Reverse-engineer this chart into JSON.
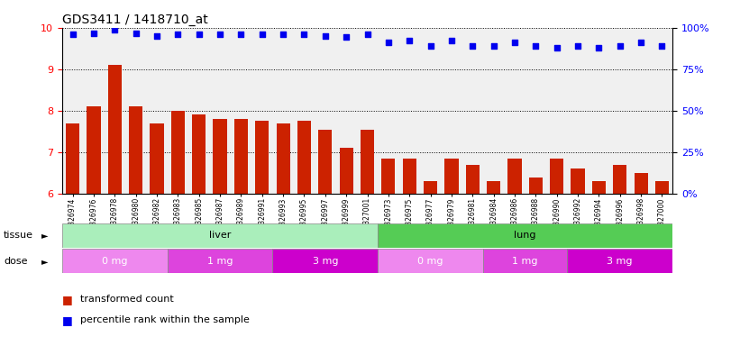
{
  "title": "GDS3411 / 1418710_at",
  "samples": [
    "GSM326974",
    "GSM326976",
    "GSM326978",
    "GSM326980",
    "GSM326982",
    "GSM326983",
    "GSM326985",
    "GSM326987",
    "GSM326989",
    "GSM326991",
    "GSM326993",
    "GSM326995",
    "GSM326997",
    "GSM326999",
    "GSM327001",
    "GSM326973",
    "GSM326975",
    "GSM326977",
    "GSM326979",
    "GSM326981",
    "GSM326984",
    "GSM326986",
    "GSM326988",
    "GSM326990",
    "GSM326992",
    "GSM326994",
    "GSM326996",
    "GSM326998",
    "GSM327000"
  ],
  "bar_values": [
    7.7,
    8.1,
    9.1,
    8.1,
    7.7,
    8.0,
    7.9,
    7.8,
    7.8,
    7.75,
    7.7,
    7.75,
    7.55,
    7.1,
    7.55,
    6.85,
    6.85,
    6.3,
    6.85,
    6.7,
    6.3,
    6.85,
    6.4,
    6.85,
    6.6,
    6.3,
    6.7,
    6.5,
    6.3
  ],
  "percentile_values": [
    96,
    96.5,
    99,
    96.5,
    95,
    96,
    96,
    96,
    96,
    96,
    96,
    96,
    95,
    94.5,
    96,
    91,
    92,
    89,
    92,
    89,
    89,
    91,
    89,
    88,
    89,
    88,
    89,
    91,
    89
  ],
  "bar_color": "#cc2200",
  "dot_color": "#0000ee",
  "ylim_left": [
    6,
    10
  ],
  "ylim_right": [
    0,
    100
  ],
  "yticks_left": [
    6,
    7,
    8,
    9,
    10
  ],
  "yticks_right": [
    0,
    25,
    50,
    75,
    100
  ],
  "tissue_groups": [
    {
      "label": "liver",
      "start": 0,
      "end": 15,
      "color": "#aaeebb"
    },
    {
      "label": "lung",
      "start": 15,
      "end": 29,
      "color": "#55cc55"
    }
  ],
  "dose_groups": [
    {
      "label": "0 mg",
      "start": 0,
      "end": 5,
      "color": "#ee88ee"
    },
    {
      "label": "1 mg",
      "start": 5,
      "end": 10,
      "color": "#dd44dd"
    },
    {
      "label": "3 mg",
      "start": 10,
      "end": 15,
      "color": "#cc00cc"
    },
    {
      "label": "0 mg",
      "start": 15,
      "end": 20,
      "color": "#ee88ee"
    },
    {
      "label": "1 mg",
      "start": 20,
      "end": 24,
      "color": "#dd44dd"
    },
    {
      "label": "3 mg",
      "start": 24,
      "end": 29,
      "color": "#cc00cc"
    }
  ],
  "legend_items": [
    {
      "label": "transformed count",
      "color": "#cc2200"
    },
    {
      "label": "percentile rank within the sample",
      "color": "#0000ee"
    }
  ],
  "tissue_label": "tissue",
  "dose_label": "dose",
  "plot_bg": "#f0f0f0",
  "title_fontsize": 10,
  "bar_width": 0.65
}
